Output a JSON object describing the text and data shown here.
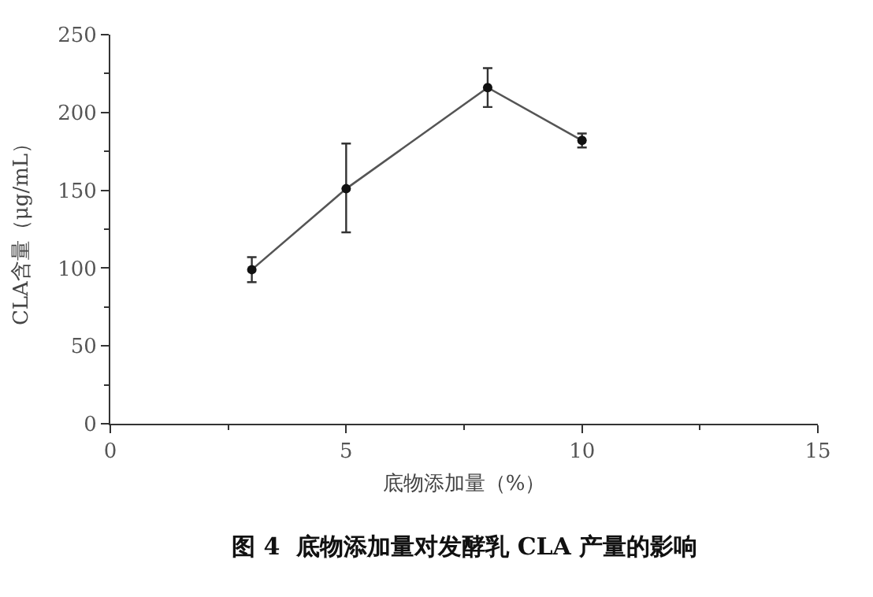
{
  "chart_data": {
    "type": "line",
    "xlabel": "底物添加量（%）",
    "ylabel": "CLA含量（μg/mL）",
    "annotations": [
      "图 4  底物添加量对发酵乳 CLA 产量的影响"
    ],
    "x": [
      3,
      5,
      8,
      10
    ],
    "series": [
      {
        "color": "#555555",
        "values": [
          99,
          151,
          216,
          182
        ],
        "errors": [
          8,
          [
            123,
            180
          ],
          [
            203.5,
            228.5
          ],
          4.5
        ]
      }
    ],
    "xlim": [
      0,
      15
    ],
    "xticks": [
      0,
      5,
      10,
      15
    ],
    "ylim": [
      0,
      250
    ],
    "yticks": [
      0,
      50,
      100,
      150,
      200,
      250
    ],
    "marker": "circle",
    "line_style": "solid"
  }
}
